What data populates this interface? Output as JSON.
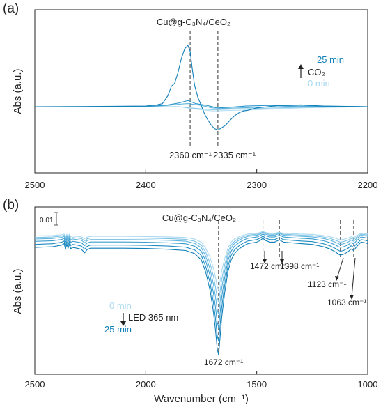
{
  "chart_data": [
    {
      "type": "line",
      "panel_label": "(a)",
      "title": "Cu@g-C₃N₄/CeO₂",
      "ylabel": "Abs (a.u.)",
      "xlabel": "",
      "xlim": [
        2500,
        2200
      ],
      "x_reversed": true,
      "x_ticks": [
        "2500",
        "2400",
        "2300",
        "2200"
      ],
      "y_ticks_shown": false,
      "grid": false,
      "legend": {
        "placement": "top-right",
        "top": "25 min",
        "bottom": "0 min",
        "arrow_label": "CO₂",
        "top_color": "#0f7fb8",
        "bottom_color": "#a9d8f0"
      },
      "reference_lines": [
        2360,
        2335
      ],
      "annotations": [
        {
          "text": "2360 cm⁻¹",
          "x": 2360
        },
        {
          "text": "2335 cm⁻¹",
          "x": 2335
        }
      ],
      "series": [
        {
          "color": "#0f7fb8",
          "x": [
            2500,
            2440,
            2400,
            2390,
            2385,
            2380,
            2377,
            2374,
            2371,
            2368,
            2365,
            2362,
            2360,
            2358,
            2356,
            2353,
            2350,
            2347,
            2344,
            2341,
            2338,
            2335,
            2332,
            2328,
            2324,
            2320,
            2316,
            2312,
            2308,
            2304,
            2300,
            2290,
            2280,
            2260,
            2240,
            2200
          ],
          "y": [
            0,
            0.005,
            0.01,
            0.03,
            0.05,
            0.18,
            0.33,
            0.38,
            0.55,
            0.78,
            0.94,
            1.0,
            0.9,
            0.6,
            0.35,
            0.15,
            0.02,
            -0.12,
            -0.22,
            -0.3,
            -0.36,
            -0.38,
            -0.35,
            -0.3,
            -0.22,
            -0.15,
            -0.1,
            -0.07,
            -0.06,
            -0.04,
            -0.02,
            0.0,
            0.02,
            0.03,
            0.01,
            0.0
          ]
        },
        {
          "color": "#2e97cc",
          "x": [
            2500,
            2400,
            2380,
            2370,
            2362,
            2355,
            2345,
            2335,
            2325,
            2310,
            2290,
            2260,
            2200
          ],
          "y": [
            0,
            0.0,
            0.03,
            0.06,
            0.1,
            0.05,
            0.02,
            -0.02,
            -0.01,
            0.01,
            0.02,
            0.01,
            0.0
          ]
        },
        {
          "color": "#5db3dc",
          "x": [
            2500,
            2400,
            2380,
            2370,
            2362,
            2350,
            2340,
            2330,
            2300,
            2260,
            2200
          ],
          "y": [
            0,
            0.0,
            0.02,
            0.04,
            0.05,
            0.02,
            -0.02,
            -0.03,
            -0.01,
            0.01,
            0.0
          ]
        },
        {
          "color": "#8ccbea",
          "x": [
            2500,
            2400,
            2370,
            2360,
            2340,
            2320,
            2300,
            2260,
            2200
          ],
          "y": [
            0,
            0.0,
            0.0,
            -0.02,
            -0.05,
            -0.04,
            -0.03,
            -0.01,
            0.0
          ]
        },
        {
          "color": "#b8e0f4",
          "x": [
            2500,
            2400,
            2370,
            2360,
            2340,
            2320,
            2300,
            2260,
            2200
          ],
          "y": [
            0,
            0.0,
            0.0,
            -0.03,
            -0.07,
            -0.06,
            -0.05,
            -0.02,
            0.0
          ]
        }
      ]
    },
    {
      "type": "line",
      "panel_label": "(b)",
      "title": "Cu@g-C₃N₄/CeO₂",
      "ylabel": "Abs (a.u.)",
      "xlabel": "Wavenumber (cm⁻¹)",
      "xlim": [
        2500,
        1000
      ],
      "x_reversed": true,
      "x_ticks": [
        "2500",
        "2000",
        "1500",
        "1000"
      ],
      "y_ticks_shown": false,
      "grid": false,
      "scale_bar": "0.01",
      "legend": {
        "placement": "bottom-left",
        "top": "0 min",
        "bottom": "25 min",
        "arrow_label": "LED 365 nm",
        "top_color": "#a9d8f0",
        "bottom_color": "#0f7fb8"
      },
      "reference_lines": [
        1672,
        1472,
        1398,
        1123,
        1063
      ],
      "annotations": [
        {
          "text": "1672 cm⁻¹",
          "x": 1672
        },
        {
          "text": "1472 cm⁻¹",
          "x": 1472
        },
        {
          "text": "1398 cm⁻¹",
          "x": 1398
        },
        {
          "text": "1123 cm⁻¹",
          "x": 1123
        },
        {
          "text": "1063 cm⁻¹",
          "x": 1063
        }
      ],
      "template": {
        "x": [
          2500,
          2420,
          2380,
          2368,
          2362,
          2356,
          2350,
          2344,
          2338,
          2330,
          2310,
          2290,
          2275,
          2265,
          2250,
          2200,
          2100,
          2000,
          1900,
          1820,
          1780,
          1750,
          1730,
          1710,
          1695,
          1685,
          1678,
          1672,
          1666,
          1658,
          1645,
          1630,
          1615,
          1600,
          1580,
          1560,
          1540,
          1520,
          1500,
          1485,
          1472,
          1460,
          1440,
          1420,
          1398,
          1380,
          1340,
          1300,
          1250,
          1200,
          1170,
          1145,
          1130,
          1123,
          1110,
          1090,
          1075,
          1063,
          1050,
          1030,
          1010,
          1000
        ],
        "y": [
          0,
          0.05,
          0.15,
          0.25,
          -0.1,
          0.2,
          -0.05,
          0.22,
          -0.08,
          0.0,
          -0.05,
          -0.12,
          -0.35,
          -0.15,
          -0.05,
          -0.05,
          -0.05,
          -0.07,
          -0.12,
          -0.2,
          -0.4,
          -0.8,
          -1.6,
          -2.8,
          -4.2,
          -5.5,
          -6.6,
          -7.0,
          -6.0,
          -4.6,
          -3.0,
          -1.6,
          -0.8,
          -0.4,
          -0.1,
          0.1,
          0.25,
          0.3,
          0.35,
          0.45,
          0.6,
          0.45,
          0.35,
          0.35,
          0.5,
          0.35,
          0.3,
          0.25,
          0.2,
          0.05,
          -0.1,
          -0.3,
          -0.45,
          -0.5,
          -0.45,
          -0.3,
          -0.1,
          -0.2,
          0.05,
          0.35,
          0.3,
          0.25
        ]
      },
      "series": [
        {
          "color": "#0f7fb8",
          "scale": 1.0,
          "offset": -0.55
        },
        {
          "color": "#1f8cc2",
          "scale": 0.9,
          "offset": -0.35
        },
        {
          "color": "#3b9ecf",
          "scale": 0.8,
          "offset": -0.15
        },
        {
          "color": "#5db3dc",
          "scale": 0.7,
          "offset": 0.0
        },
        {
          "color": "#7fc3e5",
          "scale": 0.6,
          "offset": 0.1
        },
        {
          "color": "#a9d8f0",
          "scale": 0.5,
          "offset": 0.2
        }
      ]
    }
  ]
}
